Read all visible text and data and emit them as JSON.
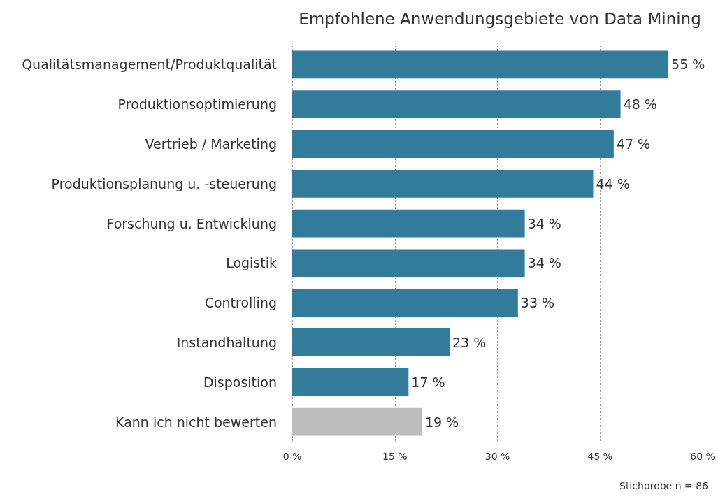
{
  "chart_data": {
    "type": "bar",
    "orientation": "horizontal",
    "title": "Empfohlene Anwendungsgebiete von Data Mining",
    "categories": [
      "Qualitätsmanagement/Produktqualität",
      "Produktionsoptimierung",
      "Vertrieb / Marketing",
      "Produktionsplanung u. -steuerung",
      "Forschung u. Entwicklung",
      "Logistik",
      "Controlling",
      "Instandhaltung",
      "Disposition",
      "Kann ich nicht bewerten"
    ],
    "values": [
      55,
      48,
      47,
      44,
      34,
      34,
      33,
      23,
      17,
      19
    ],
    "colors": [
      "#337b9b",
      "#337b9b",
      "#337b9b",
      "#337b9b",
      "#337b9b",
      "#337b9b",
      "#337b9b",
      "#337b9b",
      "#337b9b",
      "#bdbdbd"
    ],
    "value_labels": [
      "55 %",
      "48 %",
      "47 %",
      "44 %",
      "34 %",
      "34 %",
      "33 %",
      "23 %",
      "17 %",
      "19 %"
    ],
    "xlim": [
      0,
      60
    ],
    "xticks": [
      {
        "value": 0,
        "label": "0 %"
      },
      {
        "value": 15,
        "label": "15 %"
      },
      {
        "value": 30,
        "label": "30 %"
      },
      {
        "value": 45,
        "label": "45 %"
      },
      {
        "value": 60,
        "label": "60 %"
      }
    ],
    "grid": "x",
    "annotations": [
      "Stichprobe n = 86"
    ]
  }
}
